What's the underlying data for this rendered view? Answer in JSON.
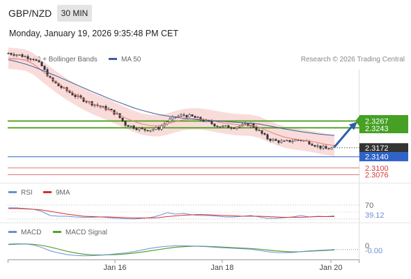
{
  "header": {
    "symbol": "GBP/NZD",
    "timeframe": "30 MIN",
    "datetime": "Monday, January 19, 2026 9:35:48 PM CET"
  },
  "legend": {
    "ma20_label": "MA 20 + Bollinger Bands",
    "ma50_label": "MA 50",
    "credit": "Research © 2026 Trading Central",
    "rsi_label": "RSI",
    "rsi_ma_label": "9MA",
    "macd_label": "MACD",
    "macd_signal_label": "MACD Signal"
  },
  "colors": {
    "ma20": "#f07b7b",
    "bollinger_fill": "#f8d6d4",
    "ma50": "#3a5e9c",
    "green_level": "#5aa52a",
    "green_label": "#45a024",
    "blue_level": "#2f63c9",
    "red_level": "#e07777",
    "current_label_bg": "#333333",
    "rsi": "#6b8fd3",
    "rsi_ma": "#d83030",
    "macd": "#6b8fd3",
    "macd_signal": "#59a032",
    "arrow": "#2f5faa"
  },
  "chart_data": {
    "type": "candlestick",
    "x_ticks": [
      "Jan 16",
      "Jan 18",
      "Jan 20"
    ],
    "price_axis_labels": {
      "resistance_2": "2.3267",
      "resistance_1": "2.3243",
      "last_price": "2.3172",
      "pivot": "2.3140",
      "support_1": "2.3100",
      "support_2": "2.3076"
    },
    "levels": {
      "resistance_2": 2.3267,
      "resistance_1": 2.3243,
      "pivot": 2.314,
      "support_1": 2.31,
      "support_2": 2.3076
    },
    "last_price": 2.3172,
    "price_approx": [
      2.3508,
      2.3504,
      2.3496,
      2.3489,
      2.3462,
      2.3416,
      2.3392,
      2.3375,
      2.3356,
      2.3342,
      2.3329,
      2.3318,
      2.3308,
      2.329,
      2.3255,
      2.3245,
      2.3236,
      2.3236,
      2.3242,
      2.3265,
      2.3282,
      2.3288,
      2.3282,
      2.3272,
      2.3262,
      2.325,
      2.3246,
      2.3246,
      2.3251,
      2.3256,
      2.323,
      2.3205,
      2.3196,
      2.3192,
      2.3198,
      2.32,
      2.3191,
      2.3177,
      2.3168,
      2.3172
    ],
    "ma20_approx": [
      2.349,
      2.3488,
      2.3484,
      2.347,
      2.3446,
      2.3422,
      2.34,
      2.338,
      2.3362,
      2.3345,
      2.333,
      2.3318,
      2.3306,
      2.3292,
      2.3278,
      2.3266,
      2.3256,
      2.3251,
      2.325,
      2.3256,
      2.3265,
      2.3272,
      2.3275,
      2.3274,
      2.327,
      2.3264,
      2.3259,
      2.3255,
      2.3253,
      2.3252,
      2.3245,
      2.3232,
      2.322,
      2.321,
      2.3204,
      2.32,
      2.3196,
      2.319,
      2.3184,
      2.318
    ],
    "ma50_approx": [
      2.3485,
      2.3478,
      2.347,
      2.346,
      2.3448,
      2.3436,
      2.3424,
      2.3411,
      2.3398,
      2.3385,
      2.3372,
      2.336,
      2.3347,
      2.3336,
      2.3325,
      2.3314,
      2.3305,
      2.3297,
      2.329,
      2.3285,
      2.328,
      2.3277,
      2.3274,
      2.3271,
      2.3269,
      2.3267,
      2.3265,
      2.3263,
      2.3261,
      2.3259,
      2.3256,
      2.3251,
      2.3245,
      2.3239,
      2.3234,
      2.3229,
      2.3225,
      2.3221,
      2.3218,
      2.3216
    ],
    "forecast_target": 2.3267,
    "rsi": {
      "levels": [
        70,
        30
      ],
      "level_labels": [
        "70"
      ],
      "last_value_label": "39.12",
      "values_approx": [
        62,
        62,
        60,
        58,
        52,
        40,
        38,
        38,
        36,
        35,
        35,
        36,
        34,
        32,
        31,
        30,
        32,
        34,
        40,
        48,
        44,
        46,
        42,
        40,
        40,
        38,
        36,
        36,
        38,
        40,
        36,
        32,
        32,
        34,
        36,
        40,
        36,
        38,
        37,
        39
      ],
      "ma_values_approx": [
        60,
        60,
        59,
        58,
        56,
        52,
        48,
        44,
        41,
        38,
        37,
        36,
        36,
        35,
        34,
        33,
        33,
        33,
        34,
        37,
        39,
        41,
        42,
        43,
        42,
        41,
        40,
        39,
        38,
        38,
        38,
        37,
        36,
        35,
        35,
        35,
        36,
        37,
        37,
        37
      ]
    },
    "macd": {
      "zero_label": "0",
      "last_value_label": "-0.00",
      "values_approx": [
        0.002,
        0.0022,
        0.0021,
        0.0016,
        0.0004,
        -0.0012,
        -0.0022,
        -0.003,
        -0.0034,
        -0.0036,
        -0.0035,
        -0.0033,
        -0.003,
        -0.0026,
        -0.0022,
        -0.0016,
        -0.0008,
        0.0,
        0.0006,
        0.001,
        0.0012,
        0.0012,
        0.0011,
        0.0009,
        0.0007,
        0.0004,
        0.0002,
        0.0,
        -0.0002,
        -0.0004,
        -0.001,
        -0.0016,
        -0.002,
        -0.0021,
        -0.002,
        -0.0016,
        -0.0012,
        -0.001,
        -0.0008,
        -0.0006
      ],
      "signal_values_approx": [
        0.0018,
        0.002,
        0.0021,
        0.0019,
        0.0014,
        0.0006,
        -0.0004,
        -0.0014,
        -0.0022,
        -0.0028,
        -0.0031,
        -0.0032,
        -0.0031,
        -0.003,
        -0.0027,
        -0.0023,
        -0.0018,
        -0.0012,
        -0.0006,
        0.0,
        0.0005,
        0.0008,
        0.001,
        0.001,
        0.0009,
        0.0007,
        0.0005,
        0.0003,
        0.0001,
        -0.0001,
        -0.0004,
        -0.0008,
        -0.0012,
        -0.0015,
        -0.0017,
        -0.0016,
        -0.0014,
        -0.0012,
        -0.001,
        -0.0008
      ]
    }
  }
}
